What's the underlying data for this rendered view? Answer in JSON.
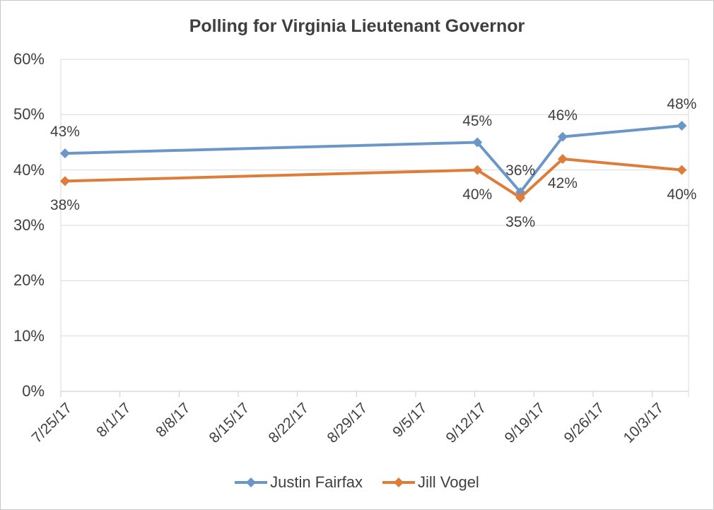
{
  "chart_data": {
    "type": "line",
    "title": "Polling for Virginia Lieutenant Governor",
    "xlabel": "",
    "ylabel": "",
    "ylim": [
      0,
      60
    ],
    "y_ticks": [
      0,
      10,
      20,
      30,
      40,
      50,
      60
    ],
    "y_tick_labels": [
      "0%",
      "10%",
      "20%",
      "30%",
      "40%",
      "50%",
      "60%"
    ],
    "x_tick_labels": [
      "7/25/17",
      "8/1/17",
      "8/8/17",
      "8/15/17",
      "8/22/17",
      "8/29/17",
      "9/5/17",
      "9/12/17",
      "9/19/17",
      "9/26/17",
      "10/3/17"
    ],
    "x_tick_days": [
      0,
      7,
      14,
      21,
      28,
      35,
      42,
      49,
      56,
      63,
      70
    ],
    "x_axis_range_days": [
      0,
      74.3
    ],
    "grid": "horizontal",
    "legend_position": "bottom-center",
    "marker": "diamond",
    "series": [
      {
        "name": "Justin Fairfax",
        "color": "#6B96C8",
        "x_days": [
          0.5,
          49.3,
          54.4,
          59.4,
          73.5
        ],
        "values": [
          43,
          45,
          36,
          46,
          48
        ],
        "point_labels": [
          "43%",
          "45%",
          "36%",
          "46%",
          "48%"
        ],
        "label_position": "above"
      },
      {
        "name": "Jill Vogel",
        "color": "#DE7D39",
        "x_days": [
          0.5,
          49.3,
          54.4,
          59.4,
          73.5
        ],
        "values": [
          38,
          40,
          35,
          42,
          40
        ],
        "point_labels": [
          "38%",
          "40%",
          "35%",
          "42%",
          "40%"
        ],
        "label_position": "below"
      }
    ],
    "colors": {
      "text": "#3F3F3F",
      "grid": "#D9D9D9",
      "axis": "#C9C9C9",
      "background": "#FFFFFF",
      "border": "#C9C9C9"
    }
  }
}
